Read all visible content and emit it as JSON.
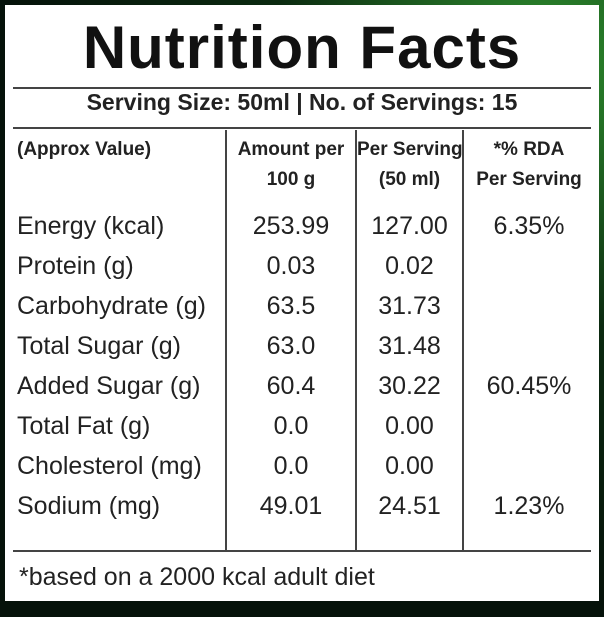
{
  "header": {
    "title": "Nutrition Facts",
    "serving": "Serving Size: 50ml  |  No. of Servings: 15"
  },
  "table": {
    "headers": [
      [
        "(Approx Value)"
      ],
      [
        "Amount per",
        "100 g"
      ],
      [
        "Per Serving",
        "(50 ml)"
      ],
      [
        "*% RDA",
        "Per Serving"
      ]
    ],
    "rows": [
      [
        "Energy (kcal)",
        "253.99",
        "127.00",
        "6.35%"
      ],
      [
        "Protein (g)",
        "0.03",
        "0.02",
        null
      ],
      [
        "Carbohydrate (g)",
        "63.5",
        "31.73",
        null
      ],
      [
        "Total Sugar (g)",
        "63.0",
        "31.48",
        null
      ],
      [
        "Added Sugar (g)",
        "60.4",
        "30.22",
        "60.45%"
      ],
      [
        "Total Fat (g)",
        "0.0",
        "0.00",
        null
      ],
      [
        "Cholesterol (mg)",
        "0.0",
        "0.00",
        null
      ],
      [
        "Sodium (mg)",
        "49.01",
        "24.51",
        "1.23%"
      ]
    ]
  },
  "footnote": "*based on a 2000 kcal adult diet"
}
